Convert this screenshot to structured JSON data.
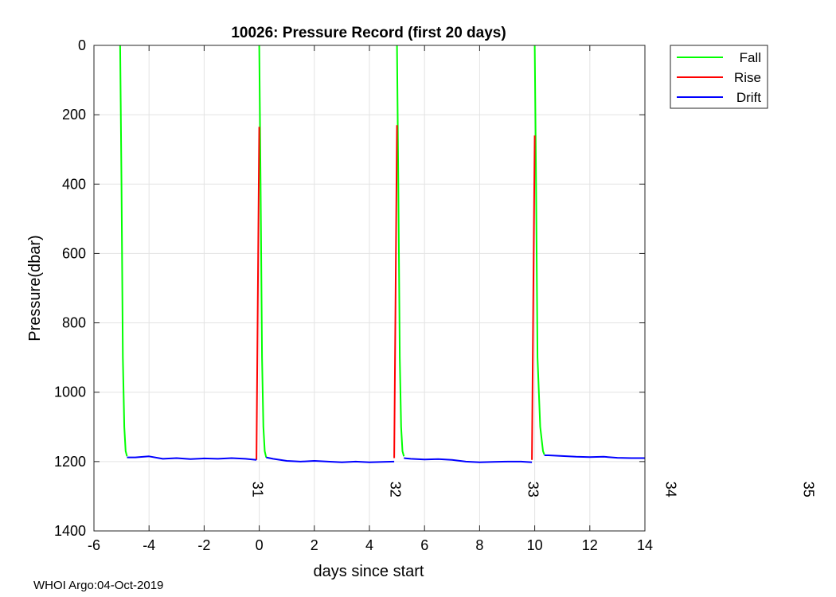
{
  "footer": "WHOI Argo:04-Oct-2019",
  "chart_data": {
    "type": "line",
    "title": "10026: Pressure Record (first 20 days)",
    "xlabel": "days since start",
    "ylabel": "Pressure(dbar)",
    "xlim": [
      -6,
      14
    ],
    "ylim": [
      0,
      1400
    ],
    "y_reversed": true,
    "grid": true,
    "xticks": [
      -6,
      -4,
      -2,
      0,
      2,
      4,
      6,
      8,
      10,
      12,
      14
    ],
    "yticks": [
      0,
      200,
      400,
      600,
      800,
      1000,
      1200,
      1400
    ],
    "legend": {
      "placement": "outside-top-right"
    },
    "colors": {
      "Fall": "#00ff00",
      "Rise": "#ff0000",
      "Drift": "#0000ff"
    },
    "series": [
      {
        "name": "Fall",
        "segments": [
          [
            [
              -5.05,
              0
            ],
            [
              -5.0,
              400
            ],
            [
              -4.95,
              900
            ],
            [
              -4.9,
              1100
            ],
            [
              -4.85,
              1170
            ],
            [
              -4.8,
              1185
            ]
          ],
          [
            [
              0.0,
              0
            ],
            [
              0.05,
              400
            ],
            [
              0.1,
              900
            ],
            [
              0.15,
              1100
            ],
            [
              0.2,
              1170
            ],
            [
              0.25,
              1188
            ]
          ],
          [
            [
              5.0,
              0
            ],
            [
              5.05,
              400
            ],
            [
              5.1,
              900
            ],
            [
              5.15,
              1100
            ],
            [
              5.2,
              1170
            ],
            [
              5.25,
              1185
            ]
          ],
          [
            [
              10.0,
              0
            ],
            [
              10.05,
              400
            ],
            [
              10.1,
              900
            ],
            [
              10.2,
              1100
            ],
            [
              10.3,
              1170
            ],
            [
              10.35,
              1180
            ]
          ]
        ]
      },
      {
        "name": "Rise",
        "segments": [
          [
            [
              -0.1,
              1195
            ],
            [
              -0.05,
              700
            ],
            [
              0.0,
              235
            ]
          ],
          [
            [
              4.9,
              1190
            ],
            [
              4.95,
              700
            ],
            [
              5.0,
              230
            ]
          ],
          [
            [
              9.9,
              1195
            ],
            [
              9.95,
              700
            ],
            [
              10.0,
              260
            ]
          ]
        ]
      },
      {
        "name": "Drift",
        "segments": [
          [
            [
              -4.8,
              1188
            ],
            [
              -4.5,
              1188
            ],
            [
              -4.0,
              1185
            ],
            [
              -3.5,
              1192
            ],
            [
              -3.0,
              1190
            ],
            [
              -2.5,
              1193
            ],
            [
              -2.0,
              1191
            ],
            [
              -1.5,
              1192
            ],
            [
              -1.0,
              1190
            ],
            [
              -0.5,
              1192
            ],
            [
              -0.1,
              1195
            ]
          ],
          [
            [
              0.25,
              1188
            ],
            [
              0.5,
              1192
            ],
            [
              1.0,
              1198
            ],
            [
              1.5,
              1200
            ],
            [
              2.0,
              1198
            ],
            [
              2.5,
              1200
            ],
            [
              3.0,
              1202
            ],
            [
              3.5,
              1200
            ],
            [
              4.0,
              1202
            ],
            [
              4.5,
              1201
            ],
            [
              4.9,
              1200
            ]
          ],
          [
            [
              5.25,
              1190
            ],
            [
              5.5,
              1192
            ],
            [
              6.0,
              1194
            ],
            [
              6.5,
              1193
            ],
            [
              7.0,
              1195
            ],
            [
              7.5,
              1200
            ],
            [
              8.0,
              1202
            ],
            [
              8.5,
              1201
            ],
            [
              9.0,
              1200
            ],
            [
              9.5,
              1200
            ],
            [
              9.9,
              1202
            ]
          ],
          [
            [
              10.35,
              1182
            ],
            [
              10.5,
              1182
            ],
            [
              11.0,
              1184
            ],
            [
              11.5,
              1186
            ],
            [
              12.0,
              1187
            ],
            [
              12.5,
              1186
            ],
            [
              13.0,
              1189
            ],
            [
              13.5,
              1190
            ],
            [
              14.0,
              1190
            ]
          ]
        ]
      }
    ],
    "annotations": [
      {
        "text": "31",
        "x": 0,
        "y": 1280
      },
      {
        "text": "32",
        "x": 5,
        "y": 1280
      },
      {
        "text": "33",
        "x": 10,
        "y": 1280
      },
      {
        "text": "34",
        "x": 15,
        "y": 1280
      },
      {
        "text": "35",
        "x": 20,
        "y": 1280
      }
    ]
  }
}
